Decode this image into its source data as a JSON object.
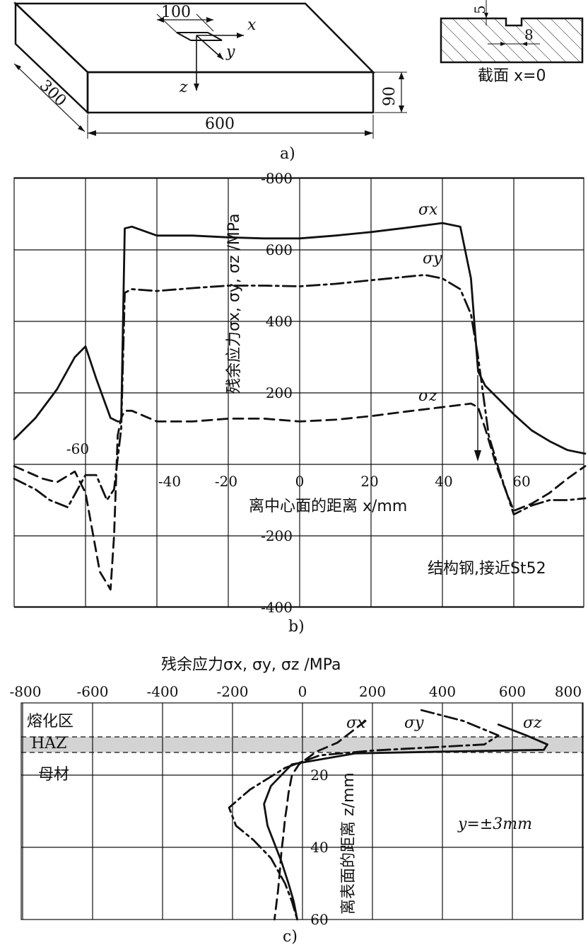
{
  "figure_a": {
    "caption": "a)",
    "dim_length": "600",
    "dim_width": "300",
    "dim_height": "90",
    "dim_groove_length": "100",
    "axis_x": "x",
    "axis_y": "y",
    "axis_z": "z",
    "section_label": "截面 x=0",
    "dim_depth": "5",
    "dim_groove_width": "8"
  },
  "figure_b": {
    "caption": "b)",
    "ylabel": "残余应力σx, σy, σz /MPa",
    "xlabel": "离中心面的距离 x/mm",
    "annotation": "结构钢,接近St52",
    "y_ticks": [
      "-800",
      "600",
      "400",
      "200",
      "-200",
      "-400"
    ],
    "x_ticks": [
      "-60",
      "-40",
      "-20",
      "0",
      "20",
      "40",
      "60"
    ],
    "series_labels": [
      "σx",
      "σy",
      "σz"
    ]
  },
  "figure_c": {
    "caption": "c)",
    "xlabel": "残余应力σx, σy, σz /MPa",
    "ylabel": "离表面的距离 z/mm",
    "annotation": "y=±3mm",
    "x_ticks": [
      "-800",
      "-600",
      "-400",
      "-200",
      "0",
      "200",
      "400",
      "600",
      "800"
    ],
    "y_ticks": [
      "20",
      "40",
      "60"
    ],
    "zone_labels": [
      "熔化区",
      "HAZ",
      "母材"
    ],
    "series_labels": [
      "σx",
      "σy",
      "σz"
    ]
  },
  "chart_data": [
    {
      "type": "line",
      "panel": "b",
      "xlabel": "离中心面的距离 x/mm",
      "ylabel": "残余应力σx, σy, σz /MPa",
      "xlim": [
        -80,
        80
      ],
      "ylim": [
        -400,
        800
      ],
      "grid": true,
      "series": [
        {
          "name": "σx",
          "style": "solid",
          "x": [
            -80,
            -74,
            -68,
            -63,
            -60,
            -57,
            -53,
            -51,
            -50,
            -49,
            -47,
            -40,
            -30,
            -20,
            -10,
            0,
            10,
            20,
            30,
            40,
            45,
            48,
            50,
            52,
            55,
            60,
            65,
            70,
            75,
            80
          ],
          "y": [
            70,
            130,
            210,
            300,
            330,
            240,
            130,
            120,
            120,
            660,
            665,
            640,
            640,
            635,
            632,
            632,
            640,
            650,
            662,
            675,
            665,
            520,
            260,
            220,
            190,
            140,
            95,
            65,
            40,
            30
          ]
        },
        {
          "name": "σy",
          "style": "dash-dot",
          "x": [
            -80,
            -74,
            -70,
            -65,
            -60,
            -57,
            -54,
            -52,
            -50,
            -49,
            -47,
            -40,
            -30,
            -20,
            -10,
            0,
            10,
            20,
            30,
            35,
            40,
            45,
            48,
            50,
            53,
            56,
            60,
            65,
            70,
            75,
            80
          ],
          "y": [
            -40,
            -70,
            -100,
            -120,
            -30,
            -30,
            -100,
            -70,
            100,
            480,
            490,
            485,
            493,
            500,
            500,
            498,
            505,
            515,
            525,
            530,
            520,
            490,
            420,
            300,
            80,
            -20,
            -140,
            -115,
            -100,
            -100,
            -95
          ]
        },
        {
          "name": "σz",
          "style": "dashed",
          "x": [
            -80,
            -72,
            -68,
            -63,
            -60,
            -56,
            -53,
            -52,
            -51,
            -50,
            -49,
            -47,
            -40,
            -30,
            -20,
            -10,
            0,
            10,
            20,
            30,
            40,
            48,
            50,
            52,
            55,
            58,
            60,
            65,
            70,
            75,
            80
          ],
          "y": [
            -5,
            -40,
            -50,
            -20,
            -80,
            -300,
            -350,
            -200,
            80,
            130,
            150,
            150,
            120,
            120,
            128,
            128,
            120,
            125,
            135,
            148,
            160,
            170,
            160,
            100,
            0,
            -80,
            -130,
            -110,
            -80,
            -40,
            -5
          ]
        }
      ]
    },
    {
      "type": "line",
      "panel": "c",
      "xlabel": "残余应力σx, σy, σz /MPa",
      "ylabel": "离表面的距离 z/mm",
      "xlim": [
        -800,
        800
      ],
      "ylim": [
        60,
        0
      ],
      "grid": true,
      "note": "y=±3mm",
      "series": [
        {
          "name": "σx",
          "style": "dashed",
          "x": [
            180,
            140,
            100,
            40,
            -10,
            -30,
            -40,
            -45,
            -50,
            -55,
            -60,
            -65,
            -70,
            -75,
            -80
          ],
          "y": [
            5,
            8,
            11,
            13.5,
            17,
            20,
            25,
            29,
            32,
            37,
            41,
            47,
            52,
            56,
            60
          ]
        },
        {
          "name": "σy",
          "style": "dash-dot",
          "x": [
            340,
            460,
            560,
            520,
            200,
            50,
            -50,
            -150,
            -210,
            -190,
            -140,
            -90,
            -50,
            -30,
            -15
          ],
          "y": [
            2,
            5,
            9,
            11.5,
            13.2,
            14.5,
            18,
            24,
            29,
            34,
            38,
            43,
            50,
            55,
            60
          ]
        },
        {
          "name": "σz",
          "style": "solid",
          "x": [
            560,
            640,
            700,
            690,
            400,
            150,
            -30,
            -90,
            -110,
            -100,
            -80,
            -60,
            -40,
            -25,
            -15
          ],
          "y": [
            6,
            9,
            11.5,
            13,
            13.5,
            14,
            17,
            23,
            28,
            34,
            39,
            44,
            50,
            55,
            60
          ]
        }
      ]
    }
  ]
}
